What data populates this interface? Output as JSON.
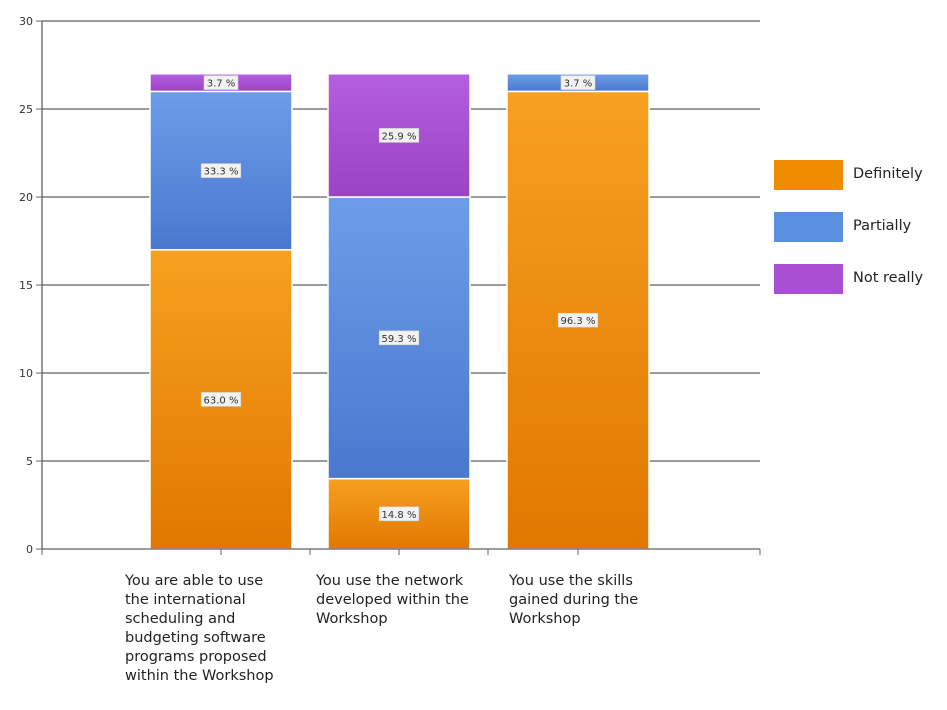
{
  "chart_data": {
    "type": "bar",
    "stacked": true,
    "title": "",
    "xlabel": "",
    "ylabel": "",
    "ylim": [
      0,
      30
    ],
    "yticks": [
      0,
      5,
      10,
      15,
      20,
      25,
      30
    ],
    "grid": true,
    "legend_position": "right",
    "categories": [
      "You are able to use the international scheduling and budgeting software programs proposed within the Workshop",
      "You use the network developed within the Workshop",
      "You use the skills gained during the Workshop"
    ],
    "category_lines": [
      [
        "You are able to use",
        "the international",
        "scheduling and",
        "budgeting software",
        "programs proposed",
        "within the Workshop"
      ],
      [
        "You use the network",
        "developed within the",
        "Workshop"
      ],
      [
        "You use the skills",
        "gained during the",
        "Workshop"
      ]
    ],
    "series": [
      {
        "name": "Definitely",
        "color": "#f08c00",
        "values": [
          17,
          4,
          26
        ],
        "labels": [
          "63.0 %",
          "14.8 %",
          "96.3 %"
        ]
      },
      {
        "name": "Partially",
        "color": "#5b8fe0",
        "values": [
          9,
          16,
          1
        ],
        "labels": [
          "33.3 %",
          "59.3 %",
          "3.7 %"
        ]
      },
      {
        "name": "Not really",
        "color": "#a94fd3",
        "values": [
          1,
          7,
          0
        ],
        "labels": [
          "3.7 %",
          "25.9 %",
          ""
        ]
      }
    ]
  }
}
